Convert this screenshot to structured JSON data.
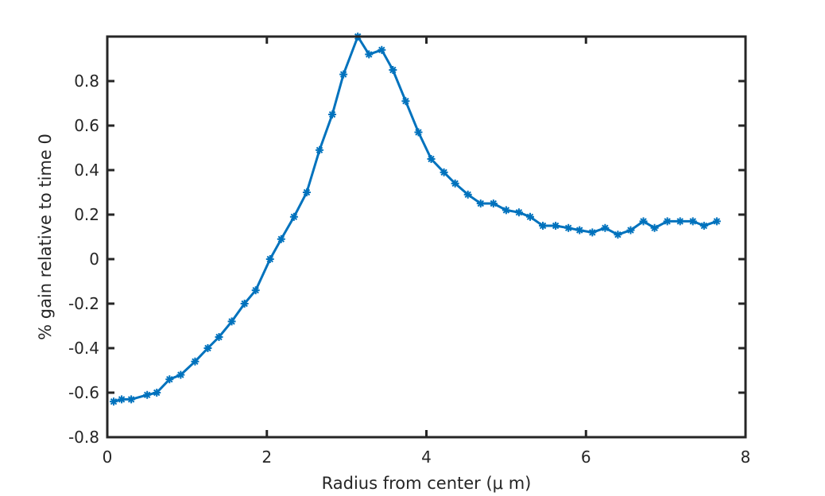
{
  "chart_data": {
    "type": "line",
    "title": "",
    "xlabel": "Radius from center (μ m)",
    "ylabel": "% gain relative to time 0",
    "xlim": [
      0,
      8
    ],
    "ylim": [
      -0.8,
      1.0
    ],
    "xticks": [
      0,
      2,
      4,
      6,
      8
    ],
    "xtick_labels": [
      "0",
      "2",
      "4",
      "6",
      "8"
    ],
    "yticks": [
      -0.8,
      -0.6,
      -0.4,
      -0.2,
      0,
      0.2,
      0.4,
      0.6,
      0.8
    ],
    "ytick_labels": [
      "-0.8",
      "-0.6",
      "-0.4",
      "-0.2",
      "0",
      "0.2",
      "0.4",
      "0.6",
      "0.8"
    ],
    "grid": false,
    "line_color": "#0072bd",
    "axis_color": "#262626",
    "marker": "asterisk",
    "series": [
      {
        "x": [
          0.08,
          0.18,
          0.3,
          0.5,
          0.62,
          0.78,
          0.92,
          1.1,
          1.26,
          1.4,
          1.56,
          1.72,
          1.86,
          2.04,
          2.18,
          2.34,
          2.5,
          2.66,
          2.82,
          2.96,
          3.14,
          3.28,
          3.44,
          3.58,
          3.74,
          3.9,
          4.06,
          4.22,
          4.36,
          4.52,
          4.68,
          4.84,
          5.0,
          5.16,
          5.3,
          5.46,
          5.62,
          5.78,
          5.92,
          6.08,
          6.24,
          6.4,
          6.56,
          6.72,
          6.86,
          7.02,
          7.18,
          7.34,
          7.48,
          7.64
        ],
        "y": [
          -0.64,
          -0.63,
          -0.63,
          -0.61,
          -0.6,
          -0.54,
          -0.52,
          -0.46,
          -0.4,
          -0.35,
          -0.28,
          -0.2,
          -0.14,
          0.0,
          0.09,
          0.19,
          0.3,
          0.49,
          0.65,
          0.83,
          1.0,
          0.92,
          0.94,
          0.85,
          0.71,
          0.57,
          0.45,
          0.39,
          0.34,
          0.29,
          0.25,
          0.25,
          0.22,
          0.21,
          0.19,
          0.15,
          0.15,
          0.14,
          0.13,
          0.12,
          0.14,
          0.11,
          0.13,
          0.17,
          0.14,
          0.17,
          0.17,
          0.17,
          0.15,
          0.17
        ]
      }
    ]
  }
}
